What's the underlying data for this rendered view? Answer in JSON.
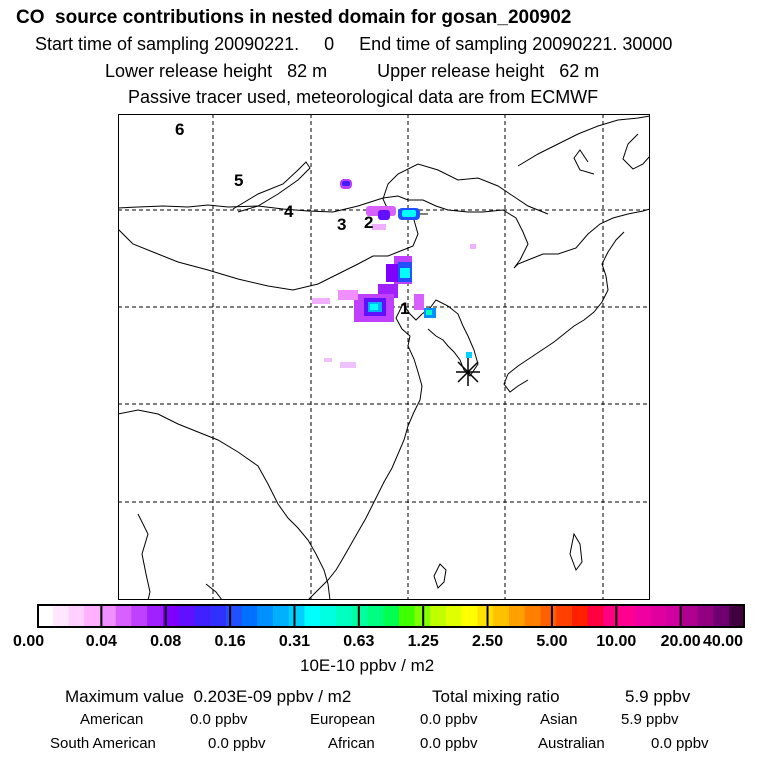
{
  "header": {
    "title": "CO  source contributions in nested domain for gosan_200902",
    "sampling": "Start time of sampling 20090221.     0     End time of sampling 20090221. 30000",
    "release": "Lower release height   82 m          Upper release height   62 m",
    "tracer": "Passive tracer used, meteorological data are from ECMWF"
  },
  "map": {
    "region_labels": [
      "6",
      "5",
      "4",
      "3",
      "2",
      "1"
    ],
    "receptor_marker": "receptor-asterisk",
    "land_outline_color": "#000000",
    "grid_style": "dashed"
  },
  "colorbar": {
    "tick_labels": [
      "0.00",
      "0.04",
      "0.08",
      "0.16",
      "0.31",
      "0.63",
      "1.25",
      "2.50",
      "5.00",
      "10.00",
      "20.00",
      "40.00"
    ],
    "unit": "10E-10 ppbv / m2",
    "colors": [
      "#ffffff",
      "#ffe8ff",
      "#ffd0ff",
      "#ffb0ff",
      "#f090ff",
      "#d860ff",
      "#c040ff",
      "#a020ff",
      "#8000ff",
      "#6010ff",
      "#4020ff",
      "#3030ff",
      "#2050ff",
      "#0070ff",
      "#0090ff",
      "#00b0ff",
      "#00d0ff",
      "#00ffff",
      "#00ffe0",
      "#00ffc0",
      "#00ffa0",
      "#00ff80",
      "#00ff50",
      "#40ff00",
      "#80ff00",
      "#c0ff00",
      "#e0ff00",
      "#ffff00",
      "#ffe000",
      "#ffc000",
      "#ffa000",
      "#ff8000",
      "#ff6000",
      "#ff4000",
      "#ff2000",
      "#ff0040",
      "#ff0080",
      "#ff0090",
      "#f000a0",
      "#e000a0",
      "#d000a0",
      "#b00090",
      "#900080",
      "#700070",
      "#400040"
    ]
  },
  "stats": {
    "max_label": "Maximum value  0.203E-09 ppbv / m2",
    "total_label": "Total mixing ratio",
    "total_value": "5.9 ppbv",
    "regions": [
      {
        "name": "American",
        "value": "0.0 ppbv"
      },
      {
        "name": "European",
        "value": "0.0 ppbv"
      },
      {
        "name": "Asian",
        "value": "5.9 ppbv"
      },
      {
        "name": "South American",
        "value": "0.0 ppbv"
      },
      {
        "name": "African",
        "value": "0.0 ppbv"
      },
      {
        "name": "Australian",
        "value": "0.0 ppbv"
      }
    ]
  }
}
